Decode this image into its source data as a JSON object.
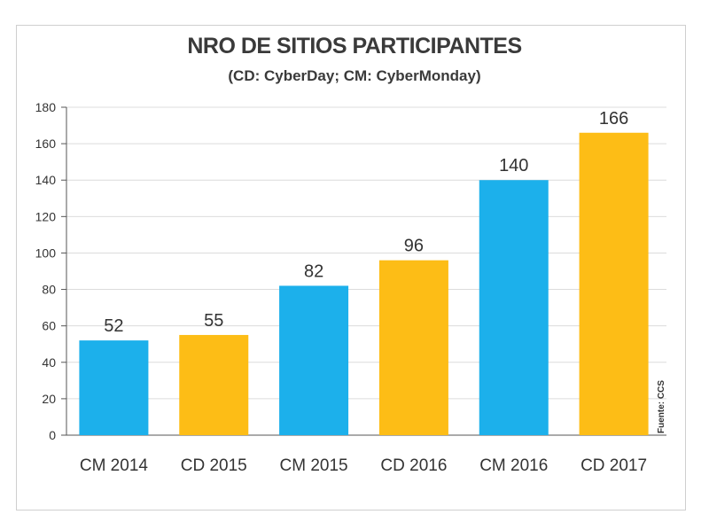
{
  "chart_data": {
    "type": "bar",
    "title": "NRO DE SITIOS PARTICIPANTES",
    "subtitle": "(CD: CyberDay; CM: CyberMonday)",
    "categories": [
      "CM 2014",
      "CD 2015",
      "CM 2015",
      "CD 2016",
      "CM 2016",
      "CD 2017"
    ],
    "values": [
      52,
      55,
      82,
      96,
      140,
      166
    ],
    "bar_colors": [
      "#1cb0eb",
      "#fdbd16",
      "#1cb0eb",
      "#fdbd16",
      "#1cb0eb",
      "#fdbd16"
    ],
    "ylim": [
      0,
      180
    ],
    "yticks": [
      0,
      20,
      40,
      60,
      80,
      100,
      120,
      140,
      160,
      180
    ],
    "grid": true,
    "xlabel": "",
    "ylabel": "",
    "source": "Fuente: CCS"
  }
}
